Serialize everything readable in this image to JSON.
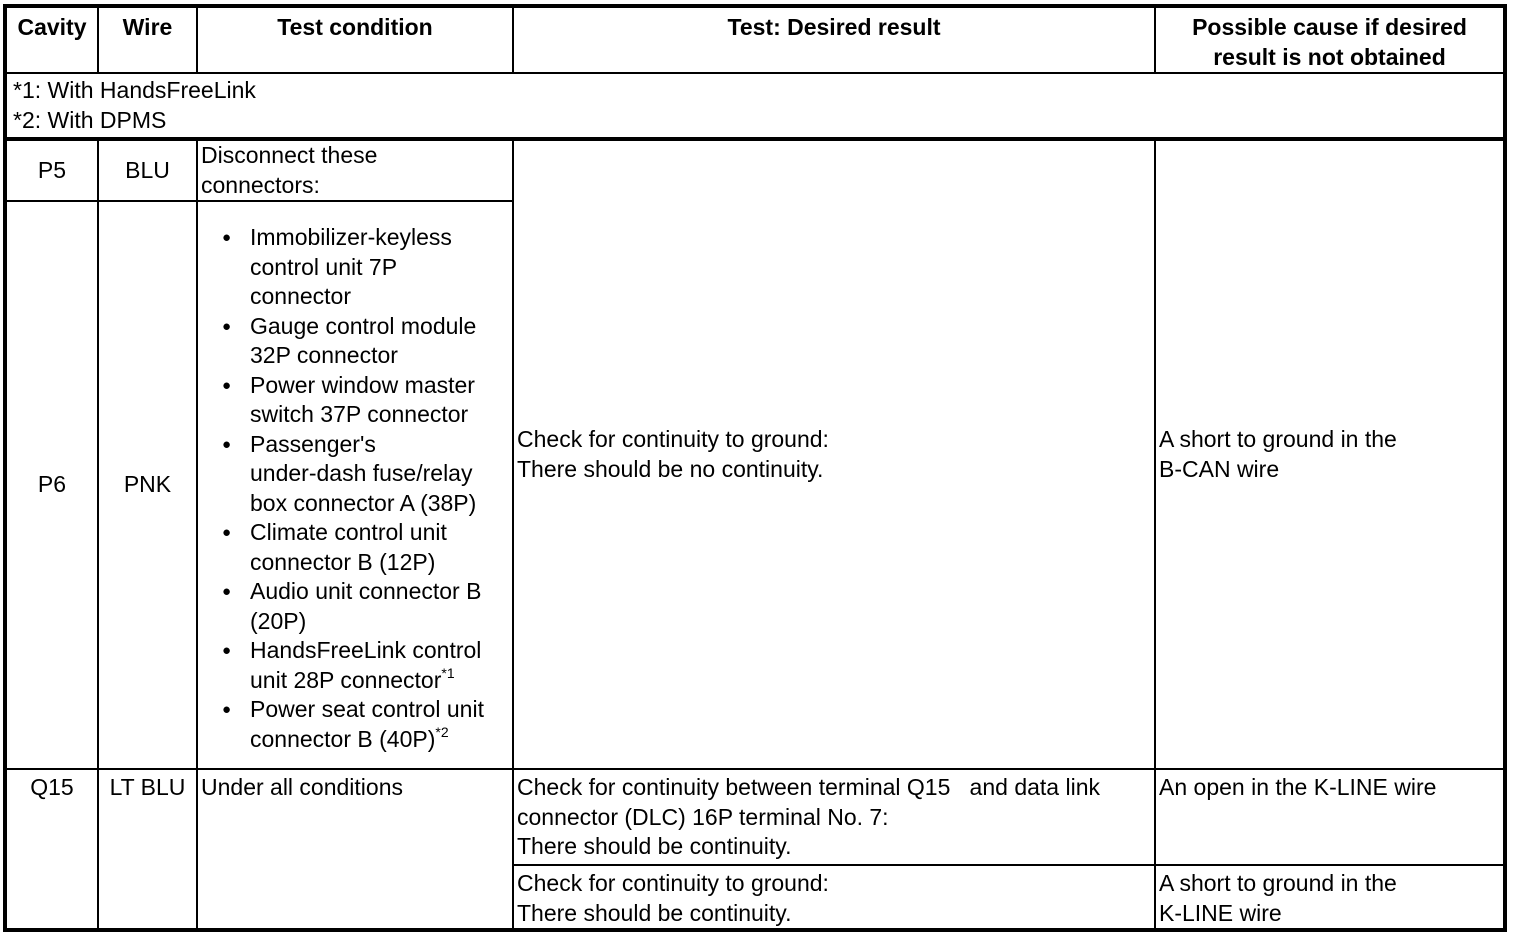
{
  "header": {
    "columns": [
      "Cavity",
      "Wire",
      "Test condition",
      "Test: Desired result",
      "Possible cause if desired\nresult is not obtained"
    ]
  },
  "notes": [
    "*1: With HandsFreeLink",
    "*2: With DPMS"
  ],
  "bullet_icon": "●",
  "rows": {
    "p5": {
      "cavity": "P5",
      "wire": "BLU",
      "condition": "Disconnect these\nconnectors:"
    },
    "p6": {
      "cavity": "P6",
      "wire": "PNK",
      "connectors": [
        {
          "text": "Immobilizer-keyless\ncontrol unit 7P\nconnector"
        },
        {
          "text": "Gauge control module\n32P connector"
        },
        {
          "text": "Power window master\nswitch 37P connector"
        },
        {
          "text": "Passenger's\nunder-dash fuse/relay\nbox connector A (38P)"
        },
        {
          "text": "Climate control unit\nconnector B (12P)"
        },
        {
          "text": "Audio unit connector B\n(20P)"
        },
        {
          "text": "HandsFreeLink control\nunit 28P connector",
          "sup": "*1"
        },
        {
          "text": "Power seat control unit\nconnector B (40P)",
          "sup": "*2"
        }
      ],
      "test": "Check for continuity to ground:\nThere should be no continuity.",
      "cause": "A short to ground in the\nB-CAN wire"
    },
    "q15": {
      "cavity": "Q15",
      "wire": "LT BLU",
      "condition": "Under all conditions",
      "sub1": {
        "test": "Check for continuity between terminal Q15   and data link\nconnector (DLC) 16P terminal No. 7:\nThere should be continuity.",
        "cause": "An open in the K-LINE wire"
      },
      "sub2": {
        "test": "Check for continuity to ground:\nThere should be continuity.",
        "cause": "A short to ground in the\nK-LINE wire"
      }
    }
  }
}
